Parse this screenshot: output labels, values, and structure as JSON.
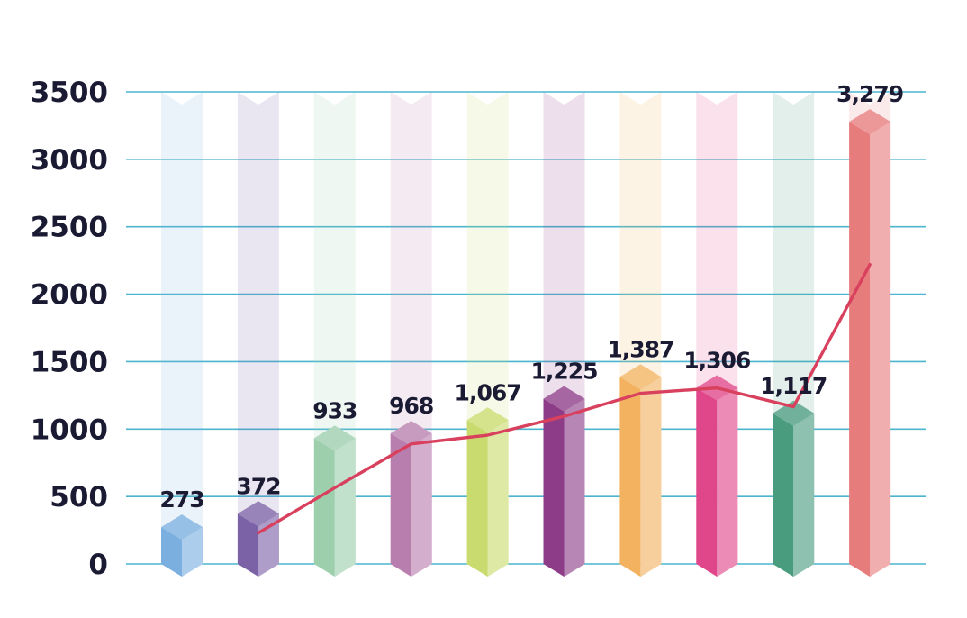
{
  "chart_data": {
    "type": "bar",
    "title": "",
    "xlabel": "",
    "ylabel": "",
    "ylim": [
      0,
      3500
    ],
    "yticks": [
      0,
      500,
      1000,
      1500,
      2000,
      2500,
      3000,
      3500
    ],
    "ytick_labels": [
      "0",
      "500",
      "1000",
      "1500",
      "2000",
      "2500",
      "3000",
      "3500"
    ],
    "grid": true,
    "series": [
      {
        "type": "bar",
        "values": [
          273,
          372,
          933,
          968,
          1067,
          1225,
          1387,
          1306,
          1117,
          3279
        ],
        "labels": [
          "273",
          "372",
          "933",
          "968",
          "1,067",
          "1,225",
          "1,387",
          "1,306",
          "1,117",
          "3,279"
        ],
        "colors": [
          "#7aafdf",
          "#7b62a6",
          "#9dcfad",
          "#b87eae",
          "#c9db6e",
          "#8d3c88",
          "#f2b25f",
          "#e0468a",
          "#4a9c7f",
          "#e77c7c"
        ]
      },
      {
        "type": "line",
        "color": "#d8405e",
        "values": [
          230,
          565,
          890,
          955,
          1095,
          1265,
          1305,
          1165,
          2220
        ]
      }
    ]
  }
}
